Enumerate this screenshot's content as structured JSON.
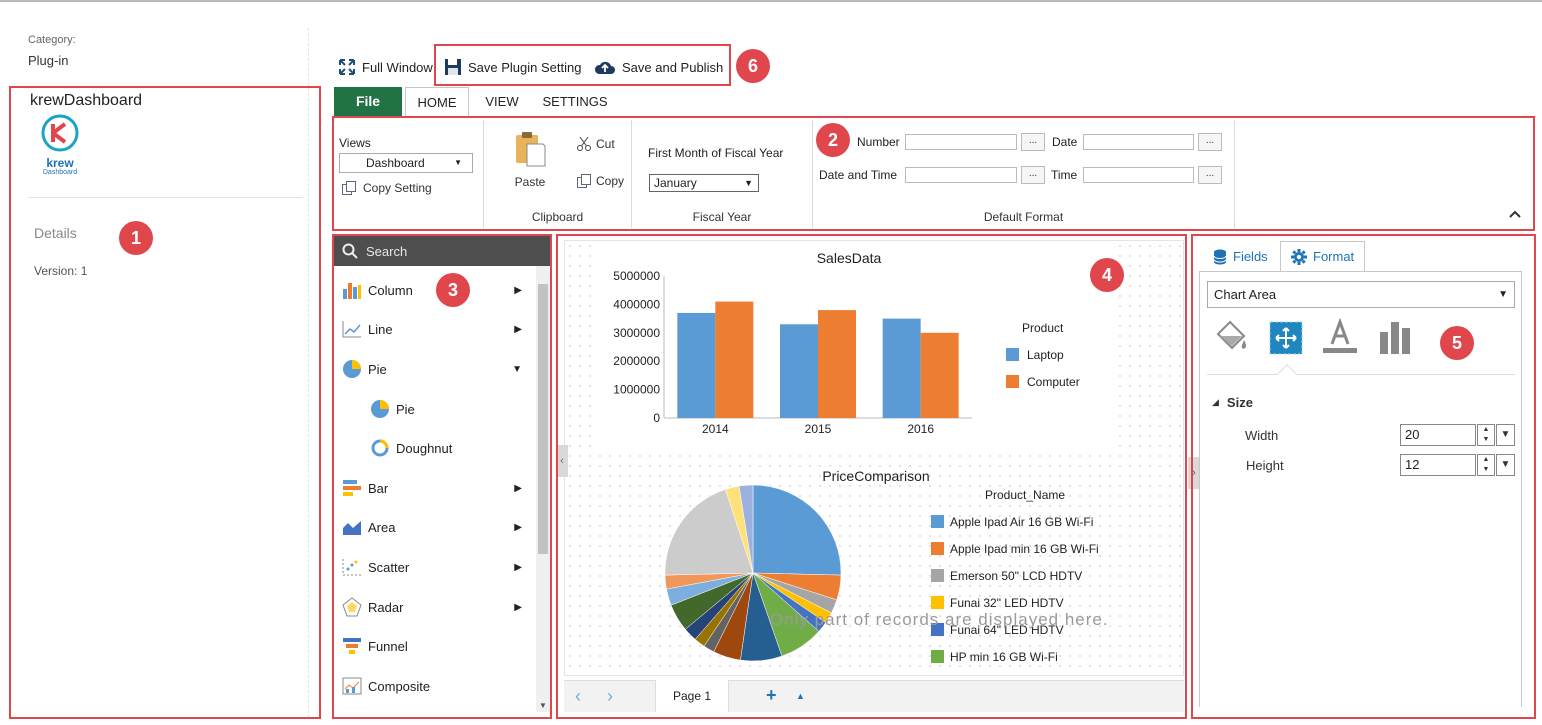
{
  "left_panel": {
    "category_label": "Category:",
    "category_value": "Plug-in",
    "plugin_name": "krewDashboard",
    "logo_text": "krew",
    "logo_sub": "Dashboard",
    "details_label": "Details",
    "version": "Version: 1"
  },
  "toolbar": {
    "full_window": "Full Window",
    "save_plugin": "Save Plugin Setting",
    "save_publish": "Save and Publish"
  },
  "tabs": {
    "file": "File",
    "home": "HOME",
    "view": "VIEW",
    "settings": "SETTINGS"
  },
  "ribbon": {
    "views_label": "Views",
    "views_value": "Dashboard",
    "copy_setting": "Copy Setting",
    "paste": "Paste",
    "cut": "Cut",
    "copy": "Copy",
    "clipboard_label": "Clipboard",
    "fiscal_title": "First Month of Fiscal Year",
    "fiscal_value": "January",
    "fiscal_label": "Fiscal Year",
    "number_label": "Number",
    "date_label": "Date",
    "datetime_label": "Date and Time",
    "time_label": "Time",
    "ellipsis": "...",
    "default_format_label": "Default Format"
  },
  "chart_types": {
    "search_placeholder": "Search",
    "items": [
      {
        "label": "Column",
        "arrow": "▶"
      },
      {
        "label": "Line",
        "arrow": "▶"
      },
      {
        "label": "Pie",
        "arrow": "▼"
      },
      {
        "label": "Pie",
        "arrow": ""
      },
      {
        "label": "Doughnut",
        "arrow": ""
      },
      {
        "label": "Bar",
        "arrow": "▶"
      },
      {
        "label": "Area",
        "arrow": "▶"
      },
      {
        "label": "Scatter",
        "arrow": "▶"
      },
      {
        "label": "Radar",
        "arrow": "▶"
      },
      {
        "label": "Funnel",
        "arrow": ""
      },
      {
        "label": "Composite",
        "arrow": ""
      }
    ]
  },
  "canvas": {
    "watermark": "Only part of records are displayed here.",
    "page_label": "Page 1"
  },
  "format_panel": {
    "fields_tab": "Fields",
    "format_tab": "Format",
    "target_value": "Chart Area",
    "size_section": "Size",
    "width_label": "Width",
    "width_value": "20",
    "height_label": "Height",
    "height_value": "12"
  },
  "badges": [
    "1",
    "2",
    "3",
    "4",
    "5",
    "6"
  ],
  "colors": {
    "file_green": "#217346",
    "annotation_red": "#e0474c",
    "blue": "#5b9bd5",
    "orange": "#ed7d31",
    "link_blue": "#1d73b8"
  },
  "chart_data": [
    {
      "type": "bar",
      "title": "SalesData",
      "categories": [
        "2014",
        "2015",
        "2016"
      ],
      "legend_title": "Product",
      "series": [
        {
          "name": "Laptop",
          "values": [
            3700000,
            3300000,
            3500000
          ],
          "color": "#5b9bd5"
        },
        {
          "name": "Computer",
          "values": [
            4100000,
            3800000,
            3000000
          ],
          "color": "#ed7d31"
        }
      ],
      "y_ticks": [
        "5000000",
        "4000000",
        "3000000",
        "2000000",
        "1000000",
        "0"
      ],
      "ylim": [
        0,
        5000000
      ],
      "legend_position": "right"
    },
    {
      "type": "pie",
      "title": "PriceComparison",
      "legend_title": "Product_Name",
      "legend_position": "right",
      "legend_entries": [
        {
          "name": "Apple Ipad Air 16 GB Wi-Fi",
          "color": "#5b9bd5"
        },
        {
          "name": "Apple Ipad min 16 GB Wi-Fi",
          "color": "#ed7d31"
        },
        {
          "name": "Emerson 50\" LCD HDTV",
          "color": "#a5a5a5"
        },
        {
          "name": "Funai 32\" LED HDTV",
          "color": "#ffc000"
        },
        {
          "name": "Funai 64\" LED HDTV",
          "color": "#4472c4"
        },
        {
          "name": "HP min 16 GB Wi-Fi",
          "color": "#70ad47"
        }
      ],
      "slices": [
        {
          "value": 25,
          "color": "#5b9bd5"
        },
        {
          "value": 4.5,
          "color": "#ed7d31"
        },
        {
          "value": 2.5,
          "color": "#a5a5a5"
        },
        {
          "value": 2,
          "color": "#ffc000"
        },
        {
          "value": 2,
          "color": "#4472c4"
        },
        {
          "value": 8,
          "color": "#70ad47"
        },
        {
          "value": 7.5,
          "color": "#255e91"
        },
        {
          "value": 5,
          "color": "#9e480e"
        },
        {
          "value": 2,
          "color": "#636363"
        },
        {
          "value": 2,
          "color": "#997300"
        },
        {
          "value": 2.5,
          "color": "#264478"
        },
        {
          "value": 5,
          "color": "#43682b"
        },
        {
          "value": 3,
          "color": "#7cafdd"
        },
        {
          "value": 2.5,
          "color": "#f1975a"
        },
        {
          "value": 20,
          "color": "#cccccc"
        },
        {
          "value": 2.5,
          "color": "#ffe17a"
        },
        {
          "value": 2.5,
          "color": "#9db1e0"
        }
      ]
    }
  ]
}
